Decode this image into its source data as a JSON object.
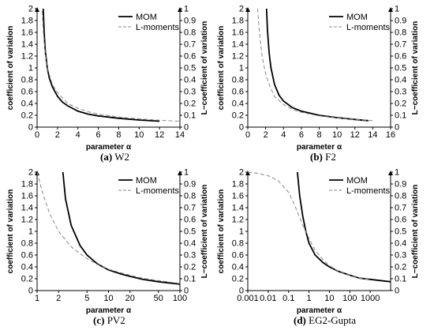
{
  "chart_data": [
    {
      "id": "a",
      "type": "line",
      "caption_tag": "(a)",
      "caption_name": "W2",
      "xlabel": "parameter α",
      "ylabel": "coefficient of variation",
      "y2label": "L−coefficient of variation",
      "xscale": "linear",
      "xlim": [
        0,
        14
      ],
      "ylim": [
        0,
        2
      ],
      "y2lim": [
        0,
        1
      ],
      "x_ticks": [
        "0",
        "2",
        "4",
        "6",
        "8",
        "10",
        "12",
        "14"
      ],
      "y_ticks": [
        "0",
        "0.2",
        "0.4",
        "0.6",
        "0.8",
        "1",
        "1.2",
        "1.4",
        "1.6",
        "1.8",
        "2"
      ],
      "y2_ticks": [
        "0",
        "0.1",
        "0.2",
        "0.3",
        "0.4",
        "0.5",
        "0.6",
        "0.7",
        "0.8",
        "0.9",
        "1"
      ],
      "legend_position": "top-right",
      "grid": false,
      "series": [
        {
          "name": "MOM",
          "axis": "left",
          "style": "solid",
          "points": [
            [
              0.6,
              2.0
            ],
            [
              0.7,
              1.6
            ],
            [
              0.8,
              1.3
            ],
            [
              1.0,
              1.0
            ],
            [
              1.2,
              0.83
            ],
            [
              1.5,
              0.68
            ],
            [
              2.0,
              0.52
            ],
            [
              2.5,
              0.42
            ],
            [
              3.0,
              0.36
            ],
            [
              4.0,
              0.27
            ],
            [
              5.0,
              0.22
            ],
            [
              6.0,
              0.19
            ],
            [
              8.0,
              0.15
            ],
            [
              10.0,
              0.12
            ],
            [
              12.0,
              0.1
            ]
          ]
        },
        {
          "name": "L-moments",
          "axis": "right",
          "style": "dashed",
          "points": [
            [
              0.5,
              0.98
            ],
            [
              0.6,
              0.82
            ],
            [
              0.8,
              0.62
            ],
            [
              1.0,
              0.5
            ],
            [
              1.5,
              0.36
            ],
            [
              2.0,
              0.29
            ],
            [
              3.0,
              0.2
            ],
            [
              4.0,
              0.16
            ],
            [
              5.0,
              0.13
            ],
            [
              6.0,
              0.11
            ],
            [
              8.0,
              0.085
            ],
            [
              10.0,
              0.07
            ],
            [
              12.0,
              0.058
            ],
            [
              14.0,
              0.05
            ]
          ]
        }
      ]
    },
    {
      "id": "b",
      "type": "line",
      "caption_tag": "(b)",
      "caption_name": "F2",
      "xlabel": "parameter α",
      "ylabel": "coefficient of variation",
      "y2label": "L−coefficient of variation",
      "xscale": "linear",
      "xlim": [
        0,
        16
      ],
      "ylim": [
        0,
        2
      ],
      "y2lim": [
        0,
        1
      ],
      "x_ticks": [
        "0",
        "2",
        "4",
        "6",
        "8",
        "10",
        "12",
        "14",
        "16"
      ],
      "y_ticks": [
        "0",
        "0.2",
        "0.4",
        "0.6",
        "0.8",
        "1",
        "1.2",
        "1.4",
        "1.6",
        "1.8",
        "2"
      ],
      "y2_ticks": [
        "0",
        "0.1",
        "0.2",
        "0.3",
        "0.4",
        "0.5",
        "0.6",
        "0.7",
        "0.8",
        "0.9",
        "1"
      ],
      "legend_position": "top-right",
      "grid": false,
      "series": [
        {
          "name": "MOM",
          "axis": "left",
          "style": "solid",
          "points": [
            [
              2.1,
              2.0
            ],
            [
              2.2,
              1.65
            ],
            [
              2.4,
              1.25
            ],
            [
              2.6,
              1.0
            ],
            [
              3.0,
              0.72
            ],
            [
              3.5,
              0.54
            ],
            [
              4.0,
              0.44
            ],
            [
              5.0,
              0.33
            ],
            [
              6.0,
              0.27
            ],
            [
              8.0,
              0.2
            ],
            [
              10.0,
              0.16
            ],
            [
              12.0,
              0.13
            ],
            [
              13.5,
              0.11
            ]
          ]
        },
        {
          "name": "L-moments",
          "axis": "right",
          "style": "dashed",
          "points": [
            [
              1.1,
              1.0
            ],
            [
              1.3,
              0.8
            ],
            [
              1.6,
              0.6
            ],
            [
              2.0,
              0.45
            ],
            [
              2.5,
              0.34
            ],
            [
              3.0,
              0.26
            ],
            [
              4.0,
              0.19
            ],
            [
              5.0,
              0.15
            ],
            [
              6.0,
              0.125
            ],
            [
              8.0,
              0.095
            ],
            [
              10.0,
              0.077
            ],
            [
              12.0,
              0.064
            ],
            [
              14.0,
              0.055
            ]
          ]
        }
      ]
    },
    {
      "id": "c",
      "type": "line",
      "caption_tag": "(c)",
      "caption_name": "PV2",
      "xlabel": "parameter α",
      "ylabel": "coefficient of variation",
      "y2label": "L−coefficient of variation",
      "xscale": "log",
      "xlim": [
        1,
        100
      ],
      "ylim": [
        0,
        2
      ],
      "y2lim": [
        0,
        1
      ],
      "x_tick_values": [
        1,
        2,
        5,
        10,
        20,
        50,
        100
      ],
      "x_ticks": [
        "1",
        "2",
        "5",
        "10",
        "20",
        "50",
        "100"
      ],
      "y_ticks": [
        "0",
        "0.2",
        "0.4",
        "0.6",
        "0.8",
        "1",
        "1.2",
        "1.4",
        "1.6",
        "1.8",
        "2"
      ],
      "y2_ticks": [
        "0",
        "0.1",
        "0.2",
        "0.3",
        "0.4",
        "0.5",
        "0.6",
        "0.7",
        "0.8",
        "0.9",
        "1"
      ],
      "legend_position": "top-right",
      "grid": false,
      "series": [
        {
          "name": "MOM",
          "axis": "left",
          "style": "solid",
          "points": [
            [
              2.3,
              2.0
            ],
            [
              2.5,
              1.55
            ],
            [
              3.0,
              1.1
            ],
            [
              4.0,
              0.76
            ],
            [
              5.0,
              0.6
            ],
            [
              7.0,
              0.45
            ],
            [
              10.0,
              0.35
            ],
            [
              15.0,
              0.28
            ],
            [
              20.0,
              0.24
            ],
            [
              30.0,
              0.19
            ],
            [
              50.0,
              0.15
            ],
            [
              70.0,
              0.13
            ],
            [
              100.0,
              0.11
            ]
          ]
        },
        {
          "name": "L-moments",
          "axis": "right",
          "style": "dashed",
          "points": [
            [
              1.0,
              1.0
            ],
            [
              1.2,
              0.82
            ],
            [
              1.5,
              0.65
            ],
            [
              2.0,
              0.5
            ],
            [
              3.0,
              0.37
            ],
            [
              4.0,
              0.31
            ],
            [
              5.0,
              0.27
            ],
            [
              7.0,
              0.22
            ],
            [
              10.0,
              0.18
            ],
            [
              15.0,
              0.15
            ],
            [
              20.0,
              0.13
            ],
            [
              30.0,
              0.105
            ],
            [
              50.0,
              0.085
            ],
            [
              100.0,
              0.06
            ]
          ]
        }
      ]
    },
    {
      "id": "d",
      "type": "line",
      "caption_tag": "(d)",
      "caption_name": "EG2-Gupta",
      "xlabel": "parameter α",
      "ylabel": "coefficient of variation",
      "y2label": "L−coefficient of variation",
      "xscale": "log",
      "xlim": [
        0.001,
        10000
      ],
      "ylim": [
        0,
        2
      ],
      "y2lim": [
        0,
        1
      ],
      "x_tick_values": [
        0.001,
        0.01,
        0.1,
        1,
        10,
        100,
        1000
      ],
      "x_ticks": [
        "0.001",
        "0.01",
        "0.1",
        "1",
        "10",
        "100",
        "1000"
      ],
      "y_ticks": [
        "0",
        "0.2",
        "0.4",
        "0.6",
        "0.8",
        "1",
        "1.2",
        "1.4",
        "1.6",
        "1.8",
        "2"
      ],
      "y2_ticks": [
        "0",
        "0.1",
        "0.2",
        "0.3",
        "0.4",
        "0.5",
        "0.6",
        "0.7",
        "0.8",
        "0.9",
        "1"
      ],
      "legend_position": "top-right",
      "grid": false,
      "series": [
        {
          "name": "MOM",
          "axis": "left",
          "style": "solid",
          "points": [
            [
              0.27,
              2.0
            ],
            [
              0.35,
              1.6
            ],
            [
              0.5,
              1.25
            ],
            [
              0.7,
              1.0
            ],
            [
              1.0,
              0.8
            ],
            [
              2.0,
              0.6
            ],
            [
              5.0,
              0.47
            ],
            [
              10.0,
              0.4
            ],
            [
              30.0,
              0.32
            ],
            [
              100.0,
              0.26
            ],
            [
              300.0,
              0.21
            ],
            [
              1000.0,
              0.19
            ],
            [
              10000.0,
              0.15
            ]
          ]
        },
        {
          "name": "L-moments",
          "axis": "right",
          "style": "dashed",
          "points": [
            [
              0.001,
              1.0
            ],
            [
              0.003,
              0.99
            ],
            [
              0.01,
              0.97
            ],
            [
              0.03,
              0.93
            ],
            [
              0.1,
              0.83
            ],
            [
              0.2,
              0.72
            ],
            [
              0.5,
              0.55
            ],
            [
              1.0,
              0.44
            ],
            [
              2.0,
              0.34
            ],
            [
              5.0,
              0.26
            ],
            [
              10.0,
              0.21
            ],
            [
              30.0,
              0.16
            ],
            [
              100.0,
              0.13
            ],
            [
              300.0,
              0.105
            ],
            [
              1000.0,
              0.095
            ]
          ]
        }
      ]
    }
  ]
}
